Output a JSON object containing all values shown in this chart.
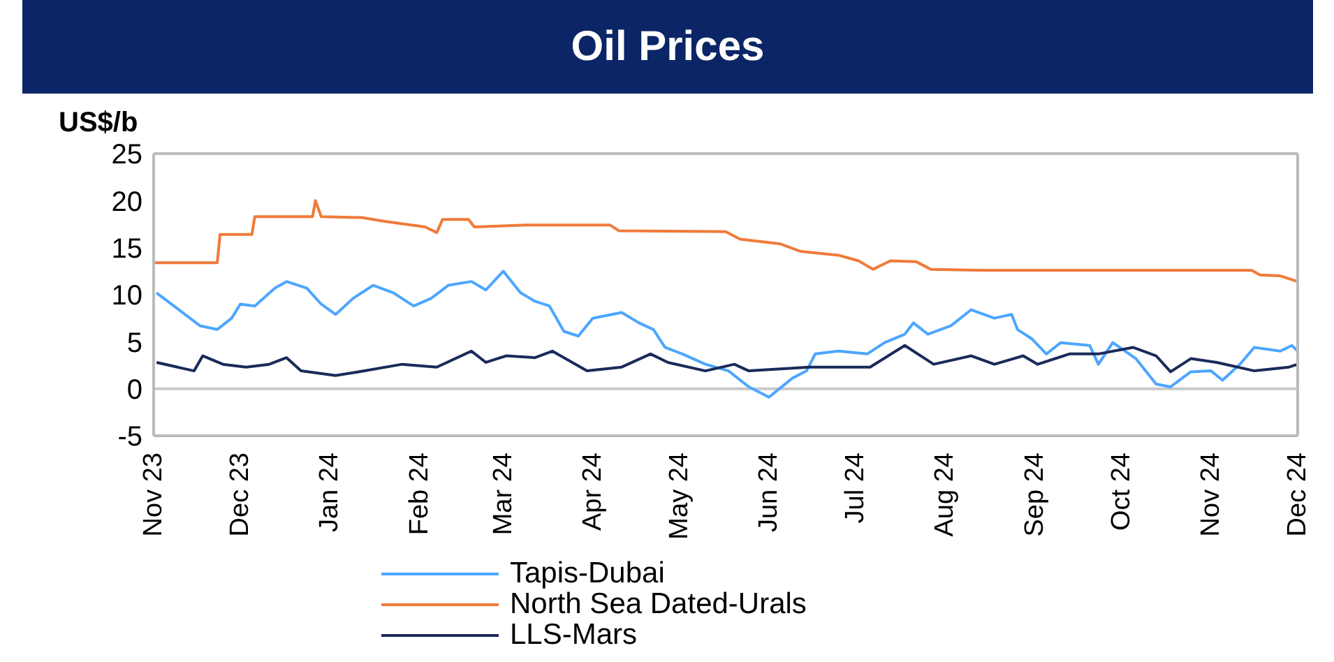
{
  "chart_data": {
    "type": "line",
    "title": "Oil Prices",
    "ylabel": "US$/b",
    "xlim": [
      "2023-11-01",
      "2024-12-01"
    ],
    "xticks": [
      {
        "value": "2023-11-01",
        "label": "Nov 23"
      },
      {
        "value": "2023-12-01",
        "label": "Dec 23"
      },
      {
        "value": "2024-01-01",
        "label": "Jan 24"
      },
      {
        "value": "2024-02-01",
        "label": "Feb 24"
      },
      {
        "value": "2024-03-01",
        "label": "Mar 24"
      },
      {
        "value": "2024-04-01",
        "label": "Apr 24"
      },
      {
        "value": "2024-05-01",
        "label": "May 24"
      },
      {
        "value": "2024-06-01",
        "label": "Jun 24"
      },
      {
        "value": "2024-07-01",
        "label": "Jul 24"
      },
      {
        "value": "2024-08-01",
        "label": "Aug 24"
      },
      {
        "value": "2024-09-01",
        "label": "Sep 24"
      },
      {
        "value": "2024-10-01",
        "label": "Oct 24"
      },
      {
        "value": "2024-11-01",
        "label": "Nov 24"
      },
      {
        "value": "2024-12-01",
        "label": "Dec 24"
      }
    ],
    "ylim": [
      -5,
      25
    ],
    "yticks": [
      -5,
      0,
      5,
      10,
      15,
      20,
      25
    ],
    "grid": false,
    "legend": "bottom",
    "marker": "none",
    "line_style": "solid",
    "ref_lines": [
      {
        "axis": "y",
        "value": 0,
        "color": "#c8c8c8"
      }
    ],
    "series": [
      {
        "name": "Tapis-Dubai",
        "color": "#4da6ff",
        "x": [
          "2023-11-02",
          "2023-11-08",
          "2023-11-17",
          "2023-11-23",
          "2023-11-28",
          "2023-12-01",
          "2023-12-06",
          "2023-12-13",
          "2023-12-17",
          "2023-12-24",
          "2023-12-29",
          "2024-01-03",
          "2024-01-09",
          "2024-01-16",
          "2024-01-23",
          "2024-01-30",
          "2024-02-05",
          "2024-02-11",
          "2024-02-19",
          "2024-02-24",
          "2024-03-01",
          "2024-03-07",
          "2024-03-12",
          "2024-03-17",
          "2024-03-22",
          "2024-03-27",
          "2024-04-01",
          "2024-04-11",
          "2024-04-17",
          "2024-04-22",
          "2024-04-26",
          "2024-05-02",
          "2024-05-10",
          "2024-05-18",
          "2024-05-25",
          "2024-06-01",
          "2024-06-09",
          "2024-06-14",
          "2024-06-17",
          "2024-06-25",
          "2024-07-05",
          "2024-07-11",
          "2024-07-18",
          "2024-07-21",
          "2024-07-26",
          "2024-08-03",
          "2024-08-10",
          "2024-08-18",
          "2024-08-24",
          "2024-08-26",
          "2024-08-31",
          "2024-09-05",
          "2024-09-10",
          "2024-09-20",
          "2024-09-23",
          "2024-09-28",
          "2024-10-06",
          "2024-10-13",
          "2024-10-18",
          "2024-10-25",
          "2024-11-01",
          "2024-11-05",
          "2024-11-11",
          "2024-11-16",
          "2024-11-25",
          "2024-11-29",
          "2024-12-01"
        ],
        "values": [
          10.2,
          8.8,
          6.7,
          6.3,
          7.5,
          9.0,
          8.8,
          10.7,
          11.4,
          10.7,
          9.0,
          7.9,
          9.6,
          11.0,
          10.2,
          8.8,
          9.6,
          11.0,
          11.4,
          10.5,
          12.5,
          10.2,
          9.3,
          8.8,
          6.1,
          5.6,
          7.5,
          8.1,
          7.0,
          6.3,
          4.4,
          3.7,
          2.6,
          1.9,
          0.2,
          -0.9,
          1.1,
          1.9,
          3.7,
          4.0,
          3.7,
          4.9,
          5.8,
          7.0,
          5.8,
          6.7,
          8.4,
          7.5,
          7.9,
          6.3,
          5.3,
          3.7,
          4.9,
          4.6,
          2.6,
          4.9,
          3.2,
          0.5,
          0.2,
          1.8,
          1.9,
          0.9,
          2.6,
          4.4,
          4.0,
          4.6,
          4.0
        ]
      },
      {
        "name": "North Sea Dated-Urals",
        "color": "#f07a3a",
        "x": [
          "2023-11-01",
          "2023-11-23",
          "2023-11-24",
          "2023-12-05",
          "2023-12-06",
          "2023-12-26",
          "2023-12-27",
          "2023-12-29",
          "2024-01-12",
          "2024-01-20",
          "2024-02-03",
          "2024-02-07",
          "2024-02-09",
          "2024-02-18",
          "2024-02-20",
          "2024-03-09",
          "2024-04-07",
          "2024-04-10",
          "2024-05-17",
          "2024-05-22",
          "2024-06-05",
          "2024-06-12",
          "2024-06-25",
          "2024-07-02",
          "2024-07-07",
          "2024-07-13",
          "2024-07-22",
          "2024-07-27",
          "2024-08-13",
          "2024-11-15",
          "2024-11-18",
          "2024-11-25",
          "2024-12-01"
        ],
        "values": [
          13.4,
          13.4,
          16.4,
          16.4,
          18.3,
          18.3,
          20.0,
          18.3,
          18.2,
          17.8,
          17.2,
          16.6,
          18.0,
          18.0,
          17.2,
          17.4,
          17.4,
          16.8,
          16.7,
          15.9,
          15.4,
          14.6,
          14.2,
          13.6,
          12.7,
          13.6,
          13.5,
          12.7,
          12.6,
          12.6,
          12.1,
          12.0,
          11.4
        ]
      },
      {
        "name": "LLS-Mars",
        "color": "#1a2a5a",
        "x": [
          "2023-11-02",
          "2023-11-15",
          "2023-11-18",
          "2023-11-25",
          "2023-12-03",
          "2023-12-11",
          "2023-12-17",
          "2023-12-22",
          "2024-01-03",
          "2024-01-13",
          "2024-01-26",
          "2024-02-07",
          "2024-02-19",
          "2024-02-24",
          "2024-03-02",
          "2024-03-12",
          "2024-03-18",
          "2024-03-30",
          "2024-04-11",
          "2024-04-21",
          "2024-04-27",
          "2024-05-10",
          "2024-05-20",
          "2024-05-25",
          "2024-06-15",
          "2024-07-06",
          "2024-07-18",
          "2024-07-28",
          "2024-08-10",
          "2024-08-18",
          "2024-08-28",
          "2024-09-02",
          "2024-09-13",
          "2024-09-23",
          "2024-10-05",
          "2024-10-13",
          "2024-10-18",
          "2024-10-25",
          "2024-11-03",
          "2024-11-16",
          "2024-11-28",
          "2024-12-01"
        ],
        "values": [
          2.8,
          1.9,
          3.5,
          2.6,
          2.3,
          2.6,
          3.3,
          1.9,
          1.4,
          1.9,
          2.6,
          2.3,
          4.0,
          2.8,
          3.5,
          3.3,
          4.0,
          1.9,
          2.3,
          3.7,
          2.8,
          1.9,
          2.6,
          1.9,
          2.3,
          2.3,
          4.6,
          2.6,
          3.5,
          2.6,
          3.5,
          2.6,
          3.7,
          3.7,
          4.4,
          3.5,
          1.8,
          3.2,
          2.8,
          1.9,
          2.3,
          2.6
        ]
      }
    ]
  }
}
